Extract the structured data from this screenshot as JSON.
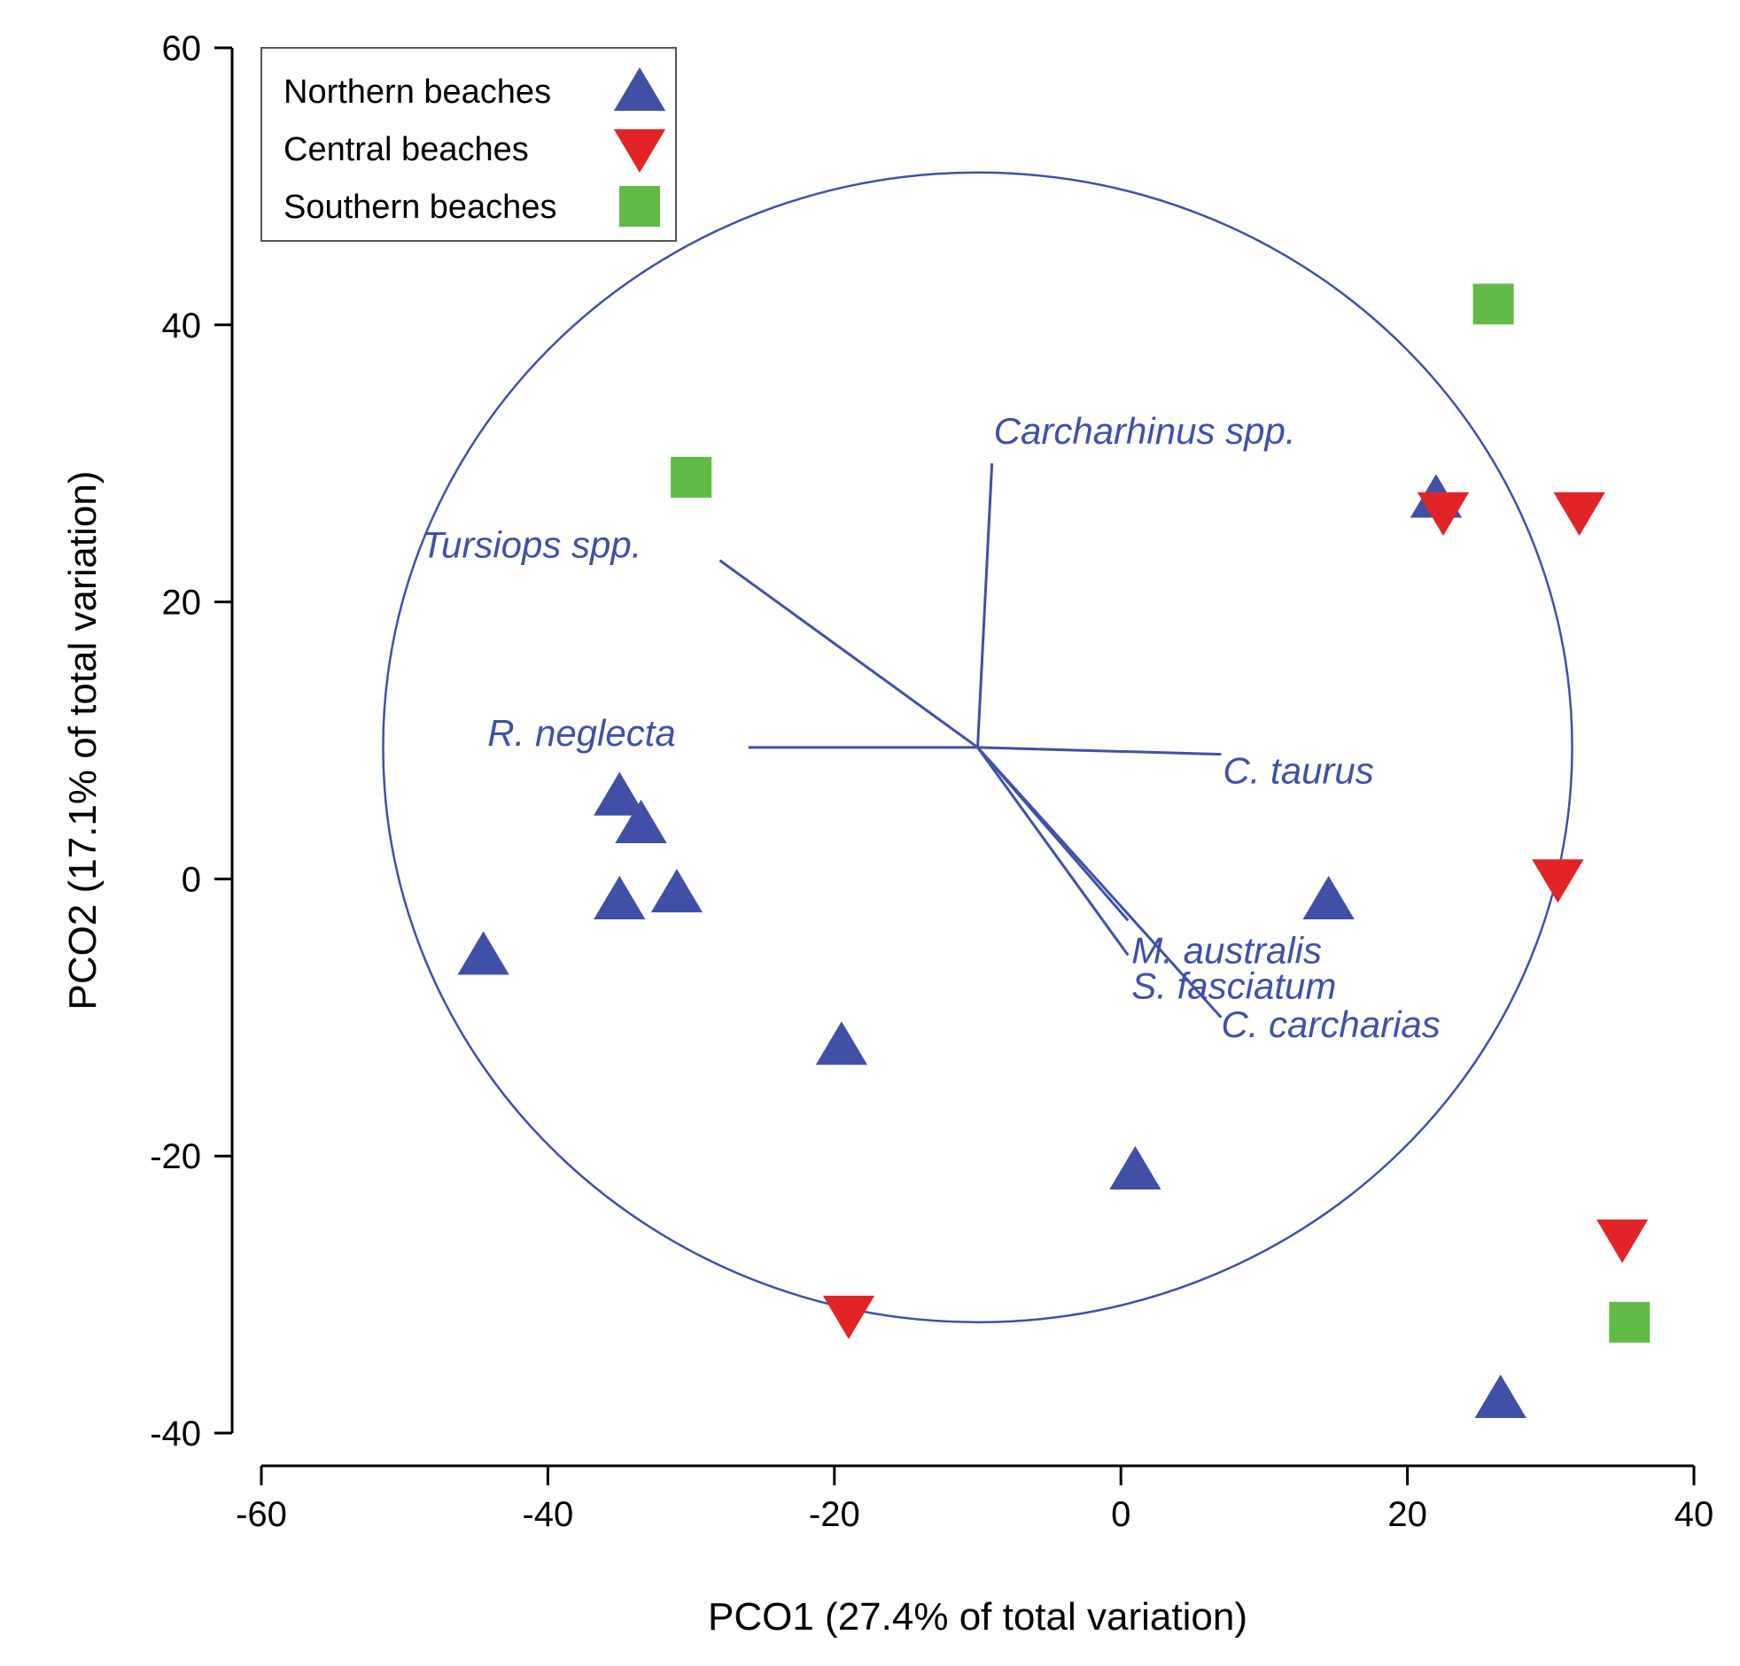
{
  "chart_data": {
    "type": "scatter",
    "subtype": "PCO ordination with vector overlay",
    "xlabel": "PCO1 (27.4% of total variation)",
    "ylabel": "PCO2 (17.1% of total variation)",
    "xlim": [
      -60,
      40
    ],
    "ylim": [
      -40,
      60
    ],
    "xticks": [
      -60,
      -40,
      -20,
      0,
      20,
      40
    ],
    "yticks": [
      -40,
      -20,
      0,
      20,
      40,
      60
    ],
    "legend_position": "top-left",
    "series": [
      {
        "name": "Northern beaches",
        "marker": "triangle-up",
        "color": "#4050a6",
        "points": [
          [
            -35,
            6
          ],
          [
            -33.5,
            4
          ],
          [
            -35,
            -1.5
          ],
          [
            -31,
            -1
          ],
          [
            -44.5,
            -5.5
          ],
          [
            -19.5,
            -12
          ],
          [
            1,
            -21
          ],
          [
            14.5,
            -1.5
          ],
          [
            22,
            27.5
          ],
          [
            26.5,
            -37.5
          ]
        ]
      },
      {
        "name": "Central beaches",
        "marker": "triangle-down",
        "color": "#e32426",
        "points": [
          [
            22.5,
            26.5
          ],
          [
            32,
            26.5
          ],
          [
            30.5,
            0
          ],
          [
            35,
            -26
          ],
          [
            -19,
            -31.5
          ]
        ]
      },
      {
        "name": "Southern beaches",
        "marker": "square",
        "color": "#62ba46",
        "points": [
          [
            26,
            41.5
          ],
          [
            -30,
            29
          ],
          [
            35.5,
            -32
          ]
        ]
      }
    ],
    "vectors": {
      "origin": [
        -10,
        9.5
      ],
      "circle_radius": 41.5,
      "items": [
        {
          "label": "Carcharhinus spp.",
          "end": [
            -9,
            30
          ]
        },
        {
          "label": "Tursiops spp.",
          "end": [
            -28,
            23
          ]
        },
        {
          "label": "R. neglecta",
          "end": [
            -26,
            9.5
          ]
        },
        {
          "label": "C. taurus",
          "end": [
            7,
            9
          ]
        },
        {
          "label": "M. australis",
          "end": [
            0.5,
            -3
          ]
        },
        {
          "label": "S. fasciatum",
          "end": [
            0.5,
            -5.5
          ]
        },
        {
          "label": "C. carcharias",
          "end": [
            7,
            -10
          ]
        }
      ]
    }
  }
}
